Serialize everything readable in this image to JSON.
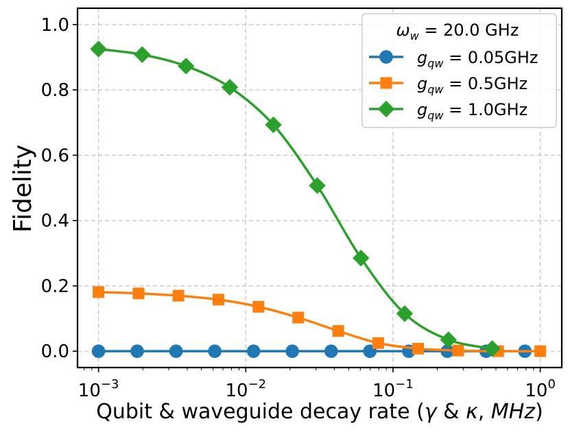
{
  "chart_data": {
    "type": "line",
    "xscale": "log",
    "xlim": [
      0.00072,
      1.4
    ],
    "ylim": [
      -0.05,
      1.05
    ],
    "grid": true,
    "xlabel_parts": {
      "prefix": "Qubit & waveguide decay rate (",
      "sym1": "γ",
      "amp": " & ",
      "sym2": "κ",
      "comma": ", ",
      "unit": "MHz",
      "suffix": ")"
    },
    "ylabel": "Fidelity",
    "x_ticks": [
      {
        "value": 0.001,
        "base": "10",
        "exp": "−3"
      },
      {
        "value": 0.01,
        "base": "10",
        "exp": "−2"
      },
      {
        "value": 0.1,
        "base": "10",
        "exp": "−1"
      },
      {
        "value": 1,
        "base": "10",
        "exp": "0"
      }
    ],
    "y_ticks": [
      {
        "value": 0.0,
        "label": "0.0"
      },
      {
        "value": 0.2,
        "label": "0.2"
      },
      {
        "value": 0.4,
        "label": "0.4"
      },
      {
        "value": 0.6,
        "label": "0.6"
      },
      {
        "value": 0.8,
        "label": "0.8"
      },
      {
        "value": 1.0,
        "label": "1.0"
      }
    ],
    "legend": {
      "position": "top-right",
      "title_symbol": "ω",
      "title_sub": "w",
      "title_rest": " = 20.0 GHz"
    },
    "series": [
      {
        "name_symbol": "g",
        "name_sub": "qw",
        "name_rest": " = 0.05GHz",
        "color": "#1f77b4",
        "marker": "circle",
        "x": [
          0.001,
          0.00183,
          0.00336,
          0.00616,
          0.0113,
          0.0207,
          0.038,
          0.0697,
          0.128,
          0.234,
          0.429,
          0.787
        ],
        "y": [
          0.0,
          0.0,
          0.0,
          0.0,
          0.0,
          0.0,
          0.0,
          0.0,
          0.0,
          0.0,
          0.0,
          0.0
        ]
      },
      {
        "name_symbol": "g",
        "name_sub": "qw",
        "name_rest": " = 0.5GHz",
        "color": "#ff7f0e",
        "marker": "square",
        "x": [
          0.001,
          0.00187,
          0.00349,
          0.00652,
          0.0122,
          0.0227,
          0.0425,
          0.0794,
          0.148,
          0.277,
          0.518,
          1.0
        ],
        "y": [
          0.181,
          0.177,
          0.17,
          0.158,
          0.136,
          0.103,
          0.062,
          0.025,
          0.008,
          0.002,
          0.0,
          0.0
        ]
      },
      {
        "name_symbol": "g",
        "name_sub": "qw",
        "name_rest": " = 1.0GHz",
        "color": "#2ca02c",
        "marker": "diamond",
        "x": [
          0.001,
          0.00198,
          0.00393,
          0.00779,
          0.0154,
          0.0306,
          0.0606,
          0.12,
          0.238,
          0.472
        ],
        "y": [
          0.925,
          0.908,
          0.873,
          0.808,
          0.693,
          0.507,
          0.285,
          0.115,
          0.035,
          0.008
        ]
      }
    ]
  }
}
